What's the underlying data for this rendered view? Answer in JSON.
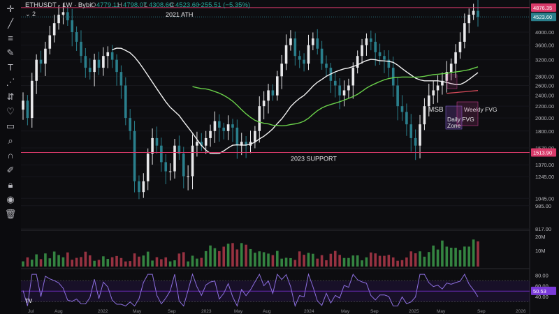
{
  "header": {
    "symbol": "ETHUSDT · 1W · Bybit",
    "o_label": "O",
    "o_value": "4779.11",
    "h_label": "H",
    "h_value": "4798.07",
    "l_label": "L",
    "l_value": "4308.60",
    "c_label": "C",
    "c_value": "4523.60",
    "change": "−255.51 (−5.35%)",
    "indicator_count": "2"
  },
  "toolbar": {
    "icons": [
      "crosshair-icon",
      "trend-line-icon",
      "fib-icon",
      "brush-icon",
      "text-icon",
      "pattern-icon",
      "forecast-icon",
      "heart-icon",
      "ruler-icon",
      "zoom-icon",
      "magnet-icon",
      "lock-draw-icon",
      "lock-icon",
      "eye-icon",
      "trash-icon"
    ]
  },
  "colors": {
    "up": "#e8e8ea",
    "down": "#2a7f8c",
    "ma_white": "#f2f2f2",
    "ma_green": "#6ad14a",
    "ma_red": "#d64a5a",
    "support_line": "#d93a6a",
    "rsi_line": "#8d6fe0",
    "rsi_band": "#6a2ab8",
    "fvg_box": "#c23c8c"
  },
  "annotations": {
    "ath": "2021 ATH",
    "support": "2023 SUPPORT",
    "msb": "MSB",
    "weekly_fvg": "Weekly FVG",
    "daily_fvg_1": "Daily FVG",
    "daily_fvg_2": "Zone"
  },
  "badges": {
    "ath_price": "4876.35",
    "last_price": "4523.60",
    "support_price": "1513.90",
    "rsi_value": "50.53"
  },
  "chart_data": {
    "type": "candlestick",
    "x_ticks": [
      "Jul",
      "Aug",
      "2022",
      "May",
      "Sep",
      "2023",
      "May",
      "Aug",
      "2024",
      "May",
      "Sep",
      "2025",
      "May",
      "Sep",
      "2026"
    ],
    "y_ticks": [
      "4000.00",
      "3600.00",
      "3200.00",
      "2800.00",
      "2600.00",
      "2400.00",
      "2200.00",
      "2000.00",
      "1800.00",
      "1570.00",
      "1370.00",
      "1245.00",
      "1045.00",
      "985.00",
      "817.00"
    ],
    "levels": {
      "ath": 4876.35,
      "support": 1513.9
    },
    "candles_close_approx": [
      2300,
      2000,
      2700,
      3200,
      3100,
      3500,
      3900,
      4300,
      4600,
      4700,
      4400,
      4000,
      3700,
      3300,
      3000,
      2900,
      3200,
      3000,
      3300,
      3400,
      3200,
      2900,
      2600,
      2000,
      1800,
      1200,
      1100,
      1200,
      1500,
      1700,
      1600,
      1400,
      1300,
      1300,
      1600,
      1500,
      1250,
      1250,
      1600,
      1650,
      1600,
      1700,
      1800,
      1950,
      1850,
      1800,
      1900,
      1850,
      1600,
      1650,
      1600,
      1650,
      1800,
      2200,
      2300,
      2500,
      2400,
      2800,
      3100,
      3600,
      3800,
      3300,
      3200,
      3100,
      3600,
      3800,
      3500,
      3100,
      3000,
      2700,
      2600,
      2400,
      2500,
      2600,
      3000,
      3300,
      3600,
      3800,
      3700,
      3400,
      3300,
      3200,
      3000,
      2600,
      2200,
      2100,
      1900,
      1700,
      1600,
      1900,
      2200,
      2400,
      2500,
      2600,
      2700,
      2900,
      3100,
      3400,
      3700,
      4300,
      4600,
      4750,
      4523
    ],
    "y_range": [
      817,
      4900
    ],
    "volume_ticks": [
      "20M",
      "10M"
    ],
    "rsi_ticks": [
      "80.00",
      "60.00",
      "40.00"
    ],
    "rsi_value": 50.53
  }
}
